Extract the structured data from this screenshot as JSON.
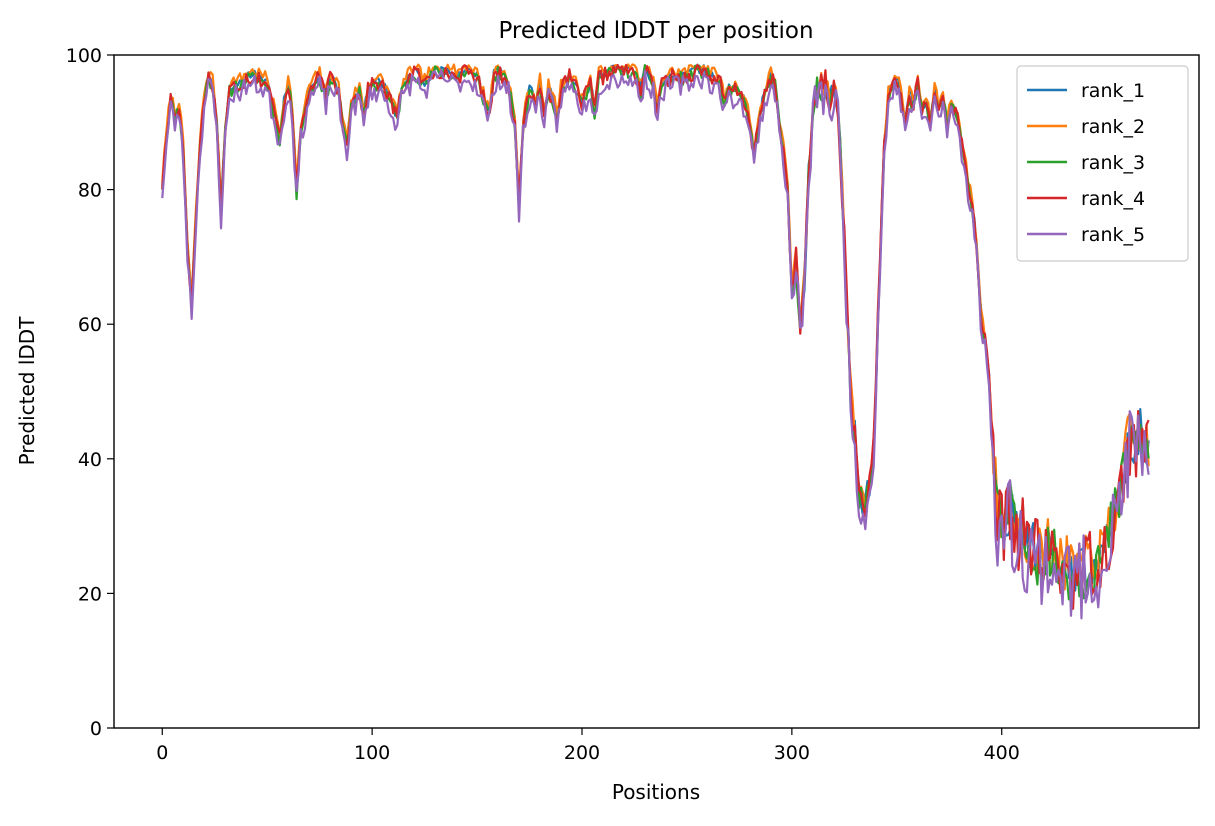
{
  "chart_data": {
    "type": "line",
    "title": "Predicted lDDT per position",
    "xlabel": "Positions",
    "ylabel": "Predicted lDDT",
    "xlim": [
      -23,
      494
    ],
    "ylim": [
      0,
      100
    ],
    "xticks": [
      0,
      100,
      200,
      300,
      400
    ],
    "yticks": [
      0,
      20,
      40,
      60,
      80,
      100
    ],
    "grid": false,
    "legend_position": "top-right",
    "x_step": 5,
    "base_profile": [
      [
        0,
        81
      ],
      [
        2,
        88
      ],
      [
        4,
        94
      ],
      [
        6,
        91
      ],
      [
        8,
        93
      ],
      [
        10,
        86
      ],
      [
        12,
        72
      ],
      [
        14,
        63
      ],
      [
        16,
        76
      ],
      [
        18,
        87
      ],
      [
        20,
        94
      ],
      [
        22,
        97
      ],
      [
        24,
        96
      ],
      [
        26,
        90
      ],
      [
        28,
        77
      ],
      [
        30,
        89
      ],
      [
        32,
        95
      ],
      [
        35,
        96
      ],
      [
        38,
        96
      ],
      [
        40,
        97
      ],
      [
        45,
        97
      ],
      [
        50,
        96
      ],
      [
        54,
        91
      ],
      [
        56,
        88
      ],
      [
        58,
        93
      ],
      [
        60,
        96
      ],
      [
        62,
        92
      ],
      [
        64,
        80
      ],
      [
        66,
        89
      ],
      [
        70,
        95
      ],
      [
        75,
        97
      ],
      [
        78,
        94
      ],
      [
        80,
        97
      ],
      [
        84,
        95
      ],
      [
        86,
        90
      ],
      [
        88,
        87
      ],
      [
        90,
        93
      ],
      [
        94,
        95
      ],
      [
        96,
        91
      ],
      [
        98,
        95
      ],
      [
        100,
        96
      ],
      [
        104,
        96
      ],
      [
        108,
        94
      ],
      [
        112,
        91
      ],
      [
        114,
        95
      ],
      [
        118,
        97
      ],
      [
        120,
        98
      ],
      [
        125,
        96
      ],
      [
        130,
        98
      ],
      [
        135,
        98
      ],
      [
        140,
        97
      ],
      [
        145,
        98
      ],
      [
        150,
        97
      ],
      [
        154,
        93
      ],
      [
        156,
        92
      ],
      [
        158,
        97
      ],
      [
        160,
        98
      ],
      [
        165,
        96
      ],
      [
        168,
        90
      ],
      [
        170,
        78
      ],
      [
        172,
        90
      ],
      [
        175,
        95
      ],
      [
        178,
        93
      ],
      [
        180,
        96
      ],
      [
        182,
        91
      ],
      [
        184,
        95
      ],
      [
        186,
        94
      ],
      [
        188,
        91
      ],
      [
        190,
        95
      ],
      [
        194,
        97
      ],
      [
        198,
        95
      ],
      [
        200,
        93
      ],
      [
        204,
        96
      ],
      [
        206,
        92
      ],
      [
        208,
        97
      ],
      [
        210,
        97
      ],
      [
        214,
        98
      ],
      [
        218,
        98
      ],
      [
        222,
        98
      ],
      [
        226,
        97
      ],
      [
        228,
        95
      ],
      [
        230,
        98
      ],
      [
        234,
        96
      ],
      [
        236,
        92
      ],
      [
        238,
        96
      ],
      [
        242,
        97
      ],
      [
        246,
        97
      ],
      [
        250,
        97
      ],
      [
        254,
        98
      ],
      [
        258,
        98
      ],
      [
        262,
        97
      ],
      [
        266,
        96
      ],
      [
        268,
        93
      ],
      [
        270,
        95
      ],
      [
        274,
        95
      ],
      [
        278,
        93
      ],
      [
        280,
        90
      ],
      [
        282,
        85
      ],
      [
        284,
        90
      ],
      [
        286,
        93
      ],
      [
        288,
        95
      ],
      [
        290,
        97
      ],
      [
        292,
        96
      ],
      [
        294,
        90
      ],
      [
        296,
        86
      ],
      [
        298,
        80
      ],
      [
        300,
        65
      ],
      [
        302,
        70
      ],
      [
        304,
        60
      ],
      [
        306,
        66
      ],
      [
        308,
        82
      ],
      [
        310,
        92
      ],
      [
        312,
        96
      ],
      [
        314,
        95
      ],
      [
        316,
        96
      ],
      [
        318,
        93
      ],
      [
        320,
        95
      ],
      [
        322,
        92
      ],
      [
        324,
        80
      ],
      [
        326,
        65
      ],
      [
        328,
        50
      ],
      [
        330,
        44
      ],
      [
        332,
        35
      ],
      [
        334,
        33
      ],
      [
        336,
        35
      ],
      [
        338,
        37
      ],
      [
        340,
        50
      ],
      [
        342,
        70
      ],
      [
        344,
        86
      ],
      [
        346,
        94
      ],
      [
        348,
        96
      ],
      [
        350,
        97
      ],
      [
        352,
        94
      ],
      [
        354,
        90
      ],
      [
        356,
        94
      ],
      [
        358,
        93
      ],
      [
        360,
        96
      ],
      [
        362,
        92
      ],
      [
        364,
        93
      ],
      [
        366,
        90
      ],
      [
        368,
        95
      ],
      [
        370,
        92
      ],
      [
        372,
        94
      ],
      [
        374,
        90
      ],
      [
        376,
        93
      ],
      [
        378,
        92
      ],
      [
        380,
        89
      ],
      [
        382,
        85
      ],
      [
        384,
        81
      ],
      [
        386,
        78
      ],
      [
        388,
        72
      ],
      [
        390,
        62
      ],
      [
        392,
        58
      ],
      [
        394,
        52
      ],
      [
        396,
        40
      ],
      [
        398,
        32
      ],
      [
        400,
        30
      ],
      [
        402,
        31
      ],
      [
        404,
        33
      ],
      [
        406,
        30
      ],
      [
        408,
        29
      ],
      [
        410,
        30
      ],
      [
        412,
        27
      ],
      [
        414,
        28
      ],
      [
        416,
        26
      ],
      [
        418,
        26
      ],
      [
        420,
        25
      ],
      [
        422,
        27
      ],
      [
        424,
        25
      ],
      [
        426,
        26
      ],
      [
        428,
        24
      ],
      [
        430,
        24
      ],
      [
        432,
        24
      ],
      [
        434,
        23
      ],
      [
        436,
        24
      ],
      [
        438,
        23
      ],
      [
        440,
        24
      ],
      [
        442,
        25
      ],
      [
        444,
        25
      ],
      [
        446,
        26
      ],
      [
        448,
        25
      ],
      [
        450,
        28
      ],
      [
        452,
        30
      ],
      [
        454,
        32
      ],
      [
        456,
        34
      ],
      [
        458,
        38
      ],
      [
        460,
        42
      ],
      [
        462,
        43
      ],
      [
        464,
        42
      ],
      [
        466,
        44
      ],
      [
        468,
        42
      ],
      [
        470,
        41
      ]
    ],
    "series": [
      {
        "name": "rank_1",
        "color": "#1f77b4",
        "offset": 0.0,
        "amp": 0.8,
        "seed": 3
      },
      {
        "name": "rank_2",
        "color": "#ff7f0e",
        "offset": 0.5,
        "amp": 0.9,
        "seed": 7
      },
      {
        "name": "rank_3",
        "color": "#2ca02c",
        "offset": -0.5,
        "amp": 1.0,
        "seed": 11
      },
      {
        "name": "rank_4",
        "color": "#d62728",
        "offset": -0.3,
        "amp": 1.2,
        "seed": 17
      },
      {
        "name": "rank_5",
        "color": "#9467bd",
        "offset": -1.5,
        "amp": 1.5,
        "seed": 23
      }
    ]
  }
}
